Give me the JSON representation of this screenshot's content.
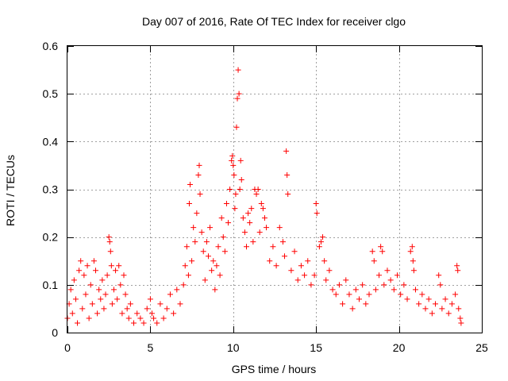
{
  "chart_data": {
    "type": "scatter",
    "title": "Day 007 of 2016, Rate Of TEC Index for receiver clgo",
    "xlabel": "GPS time / hours",
    "ylabel": "ROTI / TECUs",
    "xlim": [
      0,
      25
    ],
    "ylim": [
      0,
      0.6
    ],
    "xticks": [
      "0",
      "5",
      "10",
      "15",
      "20",
      "25"
    ],
    "yticks": [
      "0",
      "0.1",
      "0.2",
      "0.3",
      "0.4",
      "0.5",
      "0.6"
    ],
    "grid": true,
    "marker": "+",
    "color": "#ff0000",
    "series": [
      {
        "name": "ROTI",
        "points": [
          [
            0.0,
            0.03
          ],
          [
            0.1,
            0.06
          ],
          [
            0.2,
            0.09
          ],
          [
            0.3,
            0.04
          ],
          [
            0.4,
            0.11
          ],
          [
            0.5,
            0.07
          ],
          [
            0.6,
            0.02
          ],
          [
            0.7,
            0.13
          ],
          [
            0.8,
            0.15
          ],
          [
            0.9,
            0.05
          ],
          [
            1.0,
            0.12
          ],
          [
            1.1,
            0.08
          ],
          [
            1.2,
            0.14
          ],
          [
            1.3,
            0.03
          ],
          [
            1.4,
            0.1
          ],
          [
            1.5,
            0.06
          ],
          [
            1.6,
            0.15
          ],
          [
            1.7,
            0.13
          ],
          [
            1.8,
            0.04
          ],
          [
            1.9,
            0.09
          ],
          [
            2.0,
            0.07
          ],
          [
            2.1,
            0.11
          ],
          [
            2.2,
            0.05
          ],
          [
            2.3,
            0.08
          ],
          [
            2.4,
            0.12
          ],
          [
            2.5,
            0.2
          ],
          [
            2.55,
            0.19
          ],
          [
            2.6,
            0.17
          ],
          [
            2.65,
            0.14
          ],
          [
            2.7,
            0.06
          ],
          [
            2.8,
            0.09
          ],
          [
            2.9,
            0.13
          ],
          [
            3.0,
            0.07
          ],
          [
            3.1,
            0.14
          ],
          [
            3.2,
            0.1
          ],
          [
            3.3,
            0.04
          ],
          [
            3.4,
            0.12
          ],
          [
            3.5,
            0.08
          ],
          [
            3.6,
            0.05
          ],
          [
            3.7,
            0.03
          ],
          [
            3.8,
            0.06
          ],
          [
            4.0,
            0.02
          ],
          [
            4.2,
            0.04
          ],
          [
            4.4,
            0.03
          ],
          [
            4.6,
            0.02
          ],
          [
            4.8,
            0.05
          ],
          [
            5.0,
            0.07
          ],
          [
            5.1,
            0.04
          ],
          [
            5.2,
            0.03
          ],
          [
            5.4,
            0.02
          ],
          [
            5.6,
            0.06
          ],
          [
            5.8,
            0.03
          ],
          [
            6.0,
            0.05
          ],
          [
            6.2,
            0.08
          ],
          [
            6.4,
            0.04
          ],
          [
            6.6,
            0.09
          ],
          [
            6.8,
            0.06
          ],
          [
            7.0,
            0.1
          ],
          [
            7.1,
            0.14
          ],
          [
            7.2,
            0.18
          ],
          [
            7.3,
            0.12
          ],
          [
            7.35,
            0.27
          ],
          [
            7.4,
            0.31
          ],
          [
            7.5,
            0.15
          ],
          [
            7.6,
            0.22
          ],
          [
            7.7,
            0.19
          ],
          [
            7.8,
            0.25
          ],
          [
            7.9,
            0.33
          ],
          [
            7.95,
            0.35
          ],
          [
            8.0,
            0.29
          ],
          [
            8.1,
            0.21
          ],
          [
            8.2,
            0.17
          ],
          [
            8.3,
            0.11
          ],
          [
            8.4,
            0.19
          ],
          [
            8.5,
            0.16
          ],
          [
            8.6,
            0.22
          ],
          [
            8.7,
            0.13
          ],
          [
            8.8,
            0.15
          ],
          [
            8.9,
            0.09
          ],
          [
            9.0,
            0.14
          ],
          [
            9.1,
            0.18
          ],
          [
            9.2,
            0.12
          ],
          [
            9.3,
            0.24
          ],
          [
            9.4,
            0.2
          ],
          [
            9.5,
            0.17
          ],
          [
            9.6,
            0.27
          ],
          [
            9.7,
            0.23
          ],
          [
            9.8,
            0.3
          ],
          [
            9.9,
            0.36
          ],
          [
            9.95,
            0.37
          ],
          [
            10.0,
            0.35
          ],
          [
            10.05,
            0.33
          ],
          [
            10.1,
            0.26
          ],
          [
            10.15,
            0.29
          ],
          [
            10.2,
            0.43
          ],
          [
            10.25,
            0.49
          ],
          [
            10.3,
            0.55
          ],
          [
            10.35,
            0.5
          ],
          [
            10.4,
            0.3
          ],
          [
            10.45,
            0.36
          ],
          [
            10.5,
            0.32
          ],
          [
            10.6,
            0.24
          ],
          [
            10.7,
            0.21
          ],
          [
            10.8,
            0.18
          ],
          [
            10.9,
            0.25
          ],
          [
            11.0,
            0.23
          ],
          [
            11.1,
            0.26
          ],
          [
            11.2,
            0.19
          ],
          [
            11.3,
            0.3
          ],
          [
            11.4,
            0.29
          ],
          [
            11.5,
            0.3
          ],
          [
            11.6,
            0.21
          ],
          [
            11.7,
            0.27
          ],
          [
            11.8,
            0.26
          ],
          [
            11.9,
            0.24
          ],
          [
            12.0,
            0.22
          ],
          [
            12.2,
            0.15
          ],
          [
            12.4,
            0.18
          ],
          [
            12.6,
            0.14
          ],
          [
            12.8,
            0.22
          ],
          [
            13.0,
            0.19
          ],
          [
            13.1,
            0.16
          ],
          [
            13.2,
            0.38
          ],
          [
            13.25,
            0.33
          ],
          [
            13.3,
            0.29
          ],
          [
            13.5,
            0.13
          ],
          [
            13.7,
            0.17
          ],
          [
            13.9,
            0.11
          ],
          [
            14.1,
            0.14
          ],
          [
            14.3,
            0.12
          ],
          [
            14.5,
            0.15
          ],
          [
            14.7,
            0.1
          ],
          [
            14.9,
            0.12
          ],
          [
            15.0,
            0.27
          ],
          [
            15.05,
            0.25
          ],
          [
            15.2,
            0.18
          ],
          [
            15.3,
            0.19
          ],
          [
            15.4,
            0.2
          ],
          [
            15.5,
            0.15
          ],
          [
            15.6,
            0.11
          ],
          [
            15.8,
            0.13
          ],
          [
            16.0,
            0.09
          ],
          [
            16.2,
            0.08
          ],
          [
            16.4,
            0.1
          ],
          [
            16.6,
            0.06
          ],
          [
            16.8,
            0.11
          ],
          [
            17.0,
            0.08
          ],
          [
            17.2,
            0.05
          ],
          [
            17.4,
            0.09
          ],
          [
            17.6,
            0.07
          ],
          [
            17.8,
            0.1
          ],
          [
            18.0,
            0.06
          ],
          [
            18.2,
            0.08
          ],
          [
            18.4,
            0.17
          ],
          [
            18.5,
            0.15
          ],
          [
            18.6,
            0.09
          ],
          [
            18.8,
            0.12
          ],
          [
            18.9,
            0.18
          ],
          [
            19.0,
            0.17
          ],
          [
            19.1,
            0.1
          ],
          [
            19.3,
            0.13
          ],
          [
            19.5,
            0.11
          ],
          [
            19.7,
            0.09
          ],
          [
            19.9,
            0.12
          ],
          [
            20.1,
            0.08
          ],
          [
            20.3,
            0.1
          ],
          [
            20.5,
            0.07
          ],
          [
            20.7,
            0.17
          ],
          [
            20.8,
            0.18
          ],
          [
            20.85,
            0.15
          ],
          [
            20.9,
            0.13
          ],
          [
            21.0,
            0.09
          ],
          [
            21.2,
            0.06
          ],
          [
            21.4,
            0.08
          ],
          [
            21.6,
            0.05
          ],
          [
            21.8,
            0.07
          ],
          [
            22.0,
            0.04
          ],
          [
            22.2,
            0.06
          ],
          [
            22.4,
            0.12
          ],
          [
            22.5,
            0.1
          ],
          [
            22.6,
            0.05
          ],
          [
            22.8,
            0.07
          ],
          [
            23.0,
            0.04
          ],
          [
            23.2,
            0.06
          ],
          [
            23.4,
            0.08
          ],
          [
            23.5,
            0.14
          ],
          [
            23.55,
            0.13
          ],
          [
            23.6,
            0.05
          ],
          [
            23.7,
            0.03
          ],
          [
            23.75,
            0.02
          ]
        ]
      }
    ]
  }
}
